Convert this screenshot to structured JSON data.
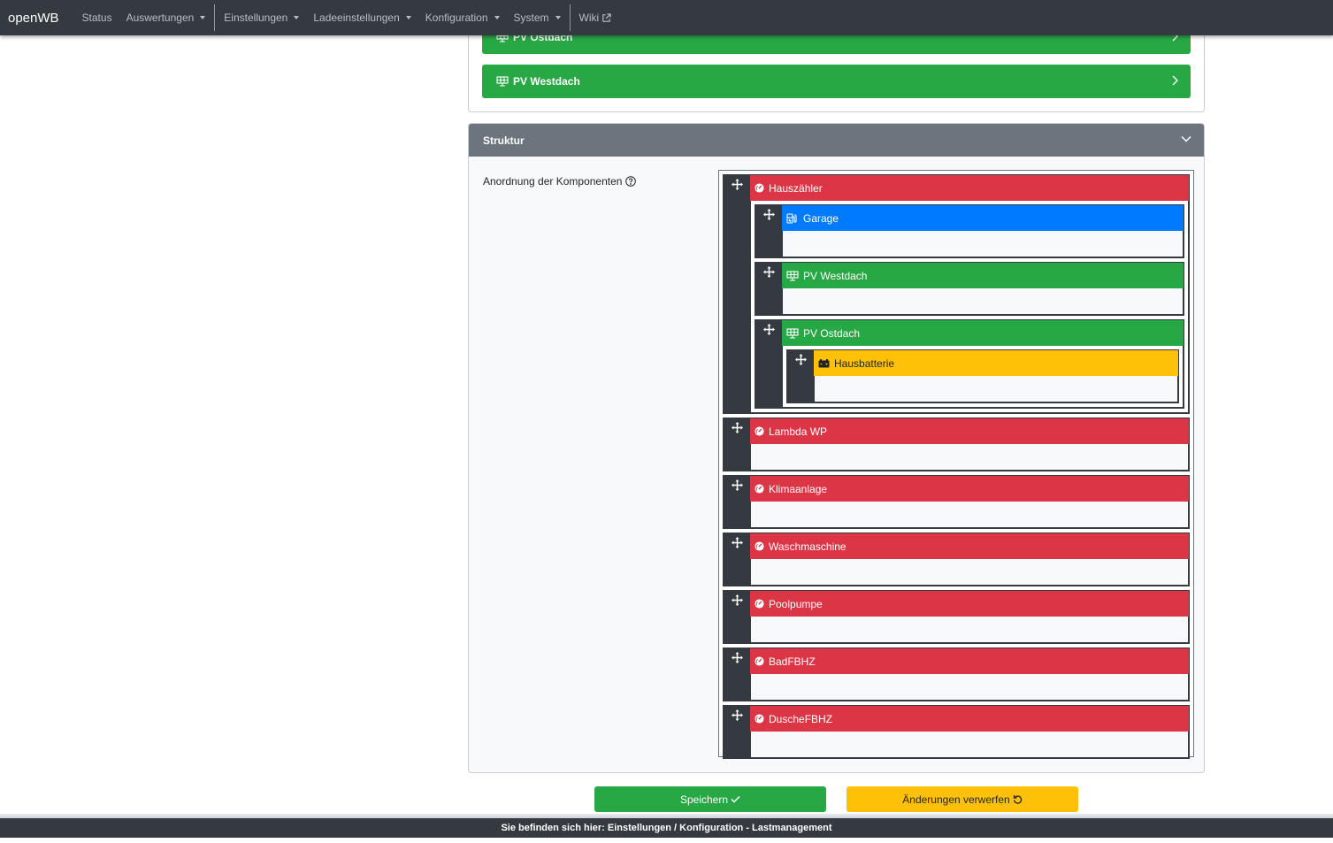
{
  "navbar": {
    "brand": "openWB",
    "items": [
      {
        "label": "Status",
        "dropdown": false
      },
      {
        "label": "Auswertungen",
        "dropdown": true
      },
      {
        "label": "Einstellungen",
        "dropdown": true
      },
      {
        "label": "Ladeeinstellungen",
        "dropdown": true
      },
      {
        "label": "Konfiguration",
        "dropdown": true
      },
      {
        "label": "System",
        "dropdown": true
      },
      {
        "label": "Wiki",
        "external": true
      }
    ]
  },
  "top_card": {
    "items": [
      {
        "label": "PV Ostdach",
        "icon": "solar-panel-icon",
        "color": "#28a745"
      },
      {
        "label": "PV Westdach",
        "icon": "solar-panel-icon",
        "color": "#28a745"
      }
    ]
  },
  "struktur": {
    "title": "Struktur",
    "field_label": "Anordnung der Komponenten",
    "tree": [
      {
        "label": "Hauszähler",
        "type": "counter",
        "icon": "meter-icon",
        "color": "#dc3545",
        "children": [
          {
            "label": "Garage",
            "type": "chargepoint",
            "icon": "charging-station-icon",
            "color": "#007bff",
            "children": []
          },
          {
            "label": "PV Westdach",
            "type": "inverter",
            "icon": "solar-panel-icon",
            "color": "#28a745",
            "children": []
          },
          {
            "label": "PV Ostdach",
            "type": "inverter",
            "icon": "solar-panel-icon",
            "color": "#28a745",
            "children": [
              {
                "label": "Hausbatterie",
                "type": "battery",
                "icon": "battery-icon",
                "color": "#ffc107",
                "children": []
              }
            ]
          }
        ]
      },
      {
        "label": "Lambda WP",
        "type": "counter",
        "icon": "meter-icon",
        "color": "#dc3545",
        "children": []
      },
      {
        "label": "Klimaanlage",
        "type": "counter",
        "icon": "meter-icon",
        "color": "#dc3545",
        "children": []
      },
      {
        "label": "Waschmaschine",
        "type": "counter",
        "icon": "meter-icon",
        "color": "#dc3545",
        "children": []
      },
      {
        "label": "Poolpumpe",
        "type": "counter",
        "icon": "meter-icon",
        "color": "#dc3545",
        "children": []
      },
      {
        "label": "BadFBHZ",
        "type": "counter",
        "icon": "meter-icon",
        "color": "#dc3545",
        "children": []
      },
      {
        "label": "DuscheFBHZ",
        "type": "counter",
        "icon": "meter-icon",
        "color": "#dc3545",
        "children": []
      }
    ]
  },
  "buttons": {
    "save_label": "Speichern",
    "discard_label": "Änderungen verwerfen"
  },
  "footer": {
    "breadcrumb": "Sie befinden sich hier: Einstellungen / Konfiguration - Lastmanagement"
  },
  "colors": {
    "navbar": "#343a40",
    "success": "#28a745",
    "danger": "#dc3545",
    "primary": "#007bff",
    "warning": "#ffc107",
    "secondary": "#6c757d"
  }
}
